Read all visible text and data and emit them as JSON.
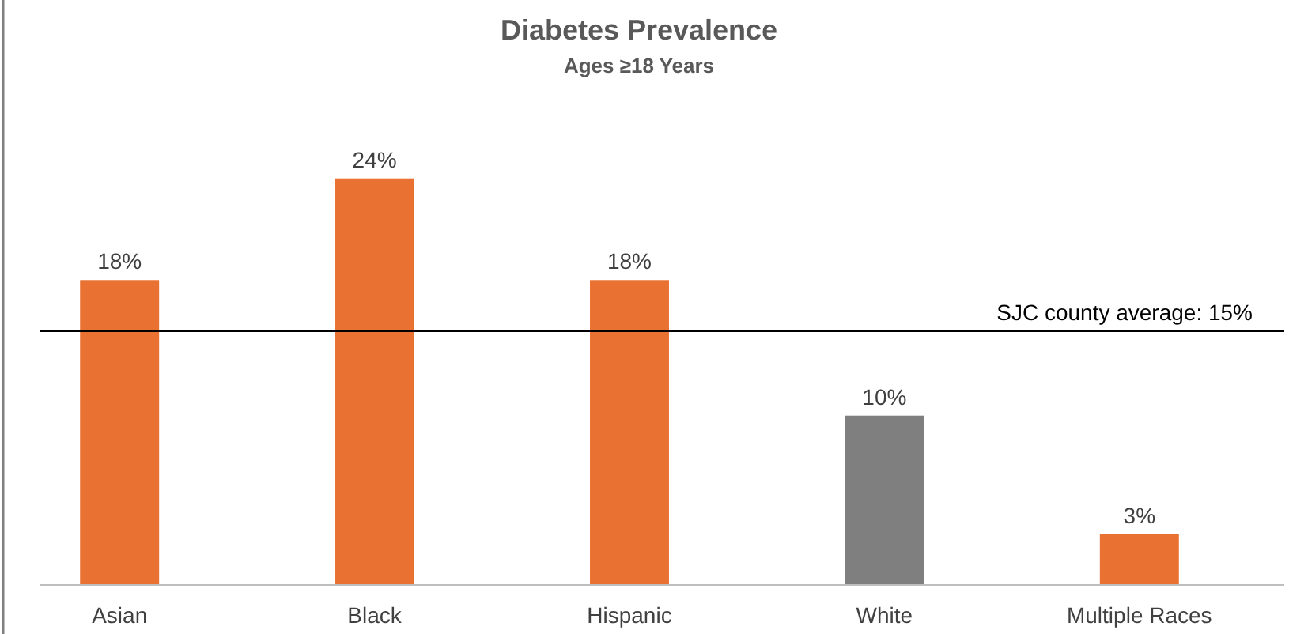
{
  "chart_data": {
    "type": "bar",
    "title": "Diabetes Prevalence",
    "subtitle": "Ages ≥18 Years",
    "categories": [
      "Asian",
      "Black",
      "Hispanic",
      "White",
      "Multiple Races"
    ],
    "values": [
      18,
      24,
      18,
      10,
      3
    ],
    "colors": [
      "#e97132",
      "#e97132",
      "#e97132",
      "#7f7f7f",
      "#e97132"
    ],
    "value_labels": [
      "18%",
      "24%",
      "18%",
      "10%",
      "3%"
    ],
    "ref_lines": [
      {
        "axis": "y",
        "value": 15,
        "label": "SJC county average: 15%",
        "color": "#000000"
      }
    ]
  }
}
